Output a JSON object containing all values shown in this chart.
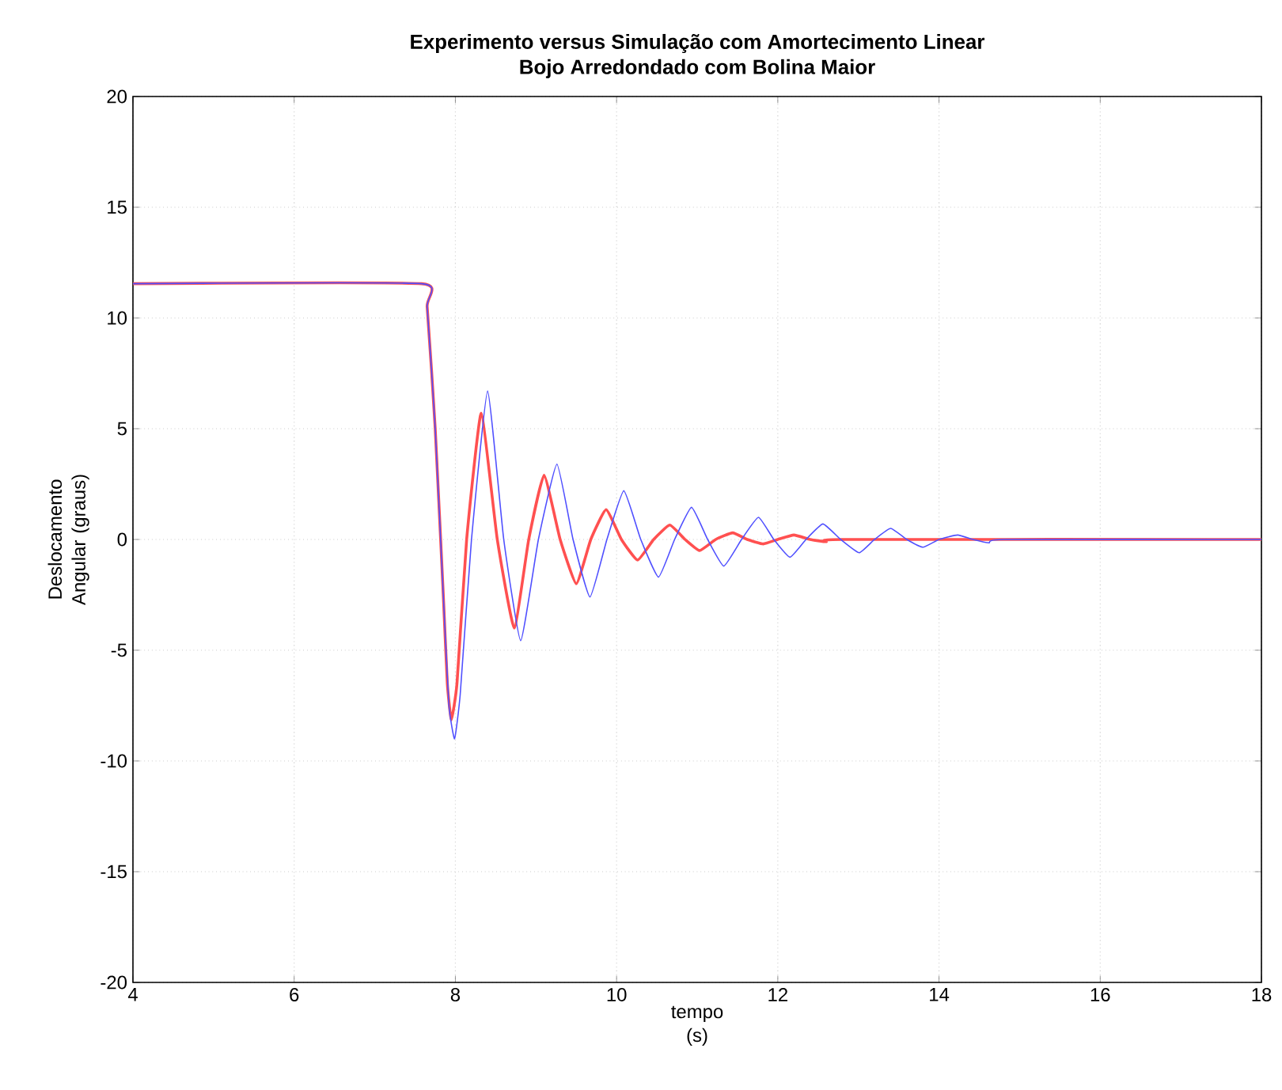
{
  "chart_data": {
    "type": "line",
    "title": "Experimento versus Simulação com Amortecimento Linear",
    "subtitle": "Bojo Arredondado com Bolina Maior",
    "xlabel": "tempo (s)",
    "ylabel": "Deslocamento Angular (graus)",
    "xlim": [
      4,
      18
    ],
    "ylim": [
      -20,
      20
    ],
    "xticks": [
      4,
      6,
      8,
      10,
      12,
      14,
      16,
      18
    ],
    "yticks": [
      -20,
      -15,
      -10,
      -5,
      0,
      5,
      10,
      15,
      20
    ],
    "grid": true,
    "line_style": "solid",
    "marker": "none",
    "series": [
      {
        "color": "#ff5050",
        "x": [
          4,
          7.58,
          7.65,
          7.75,
          7.85,
          7.9,
          7.95,
          8.02,
          8.14,
          8.32,
          8.52,
          8.73,
          8.91,
          9.1,
          9.3,
          9.5,
          9.68,
          9.87,
          10.06,
          10.26,
          10.46,
          10.66,
          10.85,
          11.03,
          11.23,
          11.44,
          11.62,
          11.82,
          12.0,
          12.2,
          12.4,
          12.6,
          12.8,
          18
        ],
        "values": [
          11.55,
          11.55,
          10.5,
          5,
          -2.5,
          -6.5,
          -8.15,
          -6.5,
          0,
          5.7,
          0,
          -4.0,
          0,
          2.9,
          0,
          -2.0,
          0,
          1.35,
          0,
          -0.93,
          0,
          0.65,
          0,
          -0.5,
          0,
          0.3,
          0,
          -0.2,
          0,
          0.2,
          0,
          -0.1,
          0,
          0
        ]
      },
      {
        "color": "#5050ff",
        "x": [
          4,
          7.58,
          7.65,
          7.75,
          7.85,
          7.92,
          7.99,
          8.06,
          8.2,
          8.4,
          8.6,
          8.81,
          9.03,
          9.26,
          9.46,
          9.67,
          9.88,
          10.09,
          10.3,
          10.52,
          10.72,
          10.93,
          11.13,
          11.33,
          11.55,
          11.76,
          11.95,
          12.15,
          12.35,
          12.56,
          12.78,
          13.01,
          13.2,
          13.4,
          13.6,
          13.8,
          14.0,
          14.23,
          14.42,
          14.62,
          14.8,
          18
        ],
        "values": [
          11.55,
          11.55,
          10.5,
          5,
          -2.5,
          -7.5,
          -9.0,
          -7,
          0,
          6.7,
          0,
          -4.57,
          0,
          3.4,
          0,
          -2.6,
          0,
          2.2,
          0,
          -1.7,
          0,
          1.45,
          0,
          -1.2,
          0,
          1.0,
          0,
          -0.8,
          0,
          0.7,
          0,
          -0.6,
          0,
          0.5,
          0,
          -0.35,
          0,
          0.2,
          0,
          -0.15,
          0,
          0
        ]
      }
    ]
  }
}
